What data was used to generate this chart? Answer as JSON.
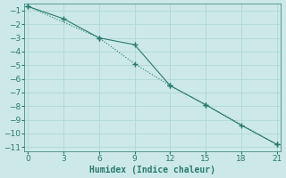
{
  "line1_x": [
    0,
    3,
    6,
    9,
    12,
    15,
    18,
    21
  ],
  "line1_y": [
    -0.7,
    -1.6,
    -3.0,
    -3.5,
    -6.5,
    -7.9,
    -9.4,
    -10.8
  ],
  "line2_x": [
    0,
    6,
    9,
    12,
    15,
    21
  ],
  "line2_y": [
    -0.7,
    -3.0,
    -4.9,
    -6.5,
    -7.9,
    -10.8
  ],
  "xlabel": "Humidex (Indice chaleur)",
  "xlim": [
    -0.3,
    21.3
  ],
  "ylim": [
    -11.3,
    -0.5
  ],
  "yticks": [
    -1,
    -2,
    -3,
    -4,
    -5,
    -6,
    -7,
    -8,
    -9,
    -10,
    -11
  ],
  "xticks": [
    0,
    3,
    6,
    9,
    12,
    15,
    18,
    21
  ],
  "line_color": "#2a7a6e",
  "bg_color": "#cce8e8",
  "grid_color": "#b0d8d8",
  "marker": "+"
}
